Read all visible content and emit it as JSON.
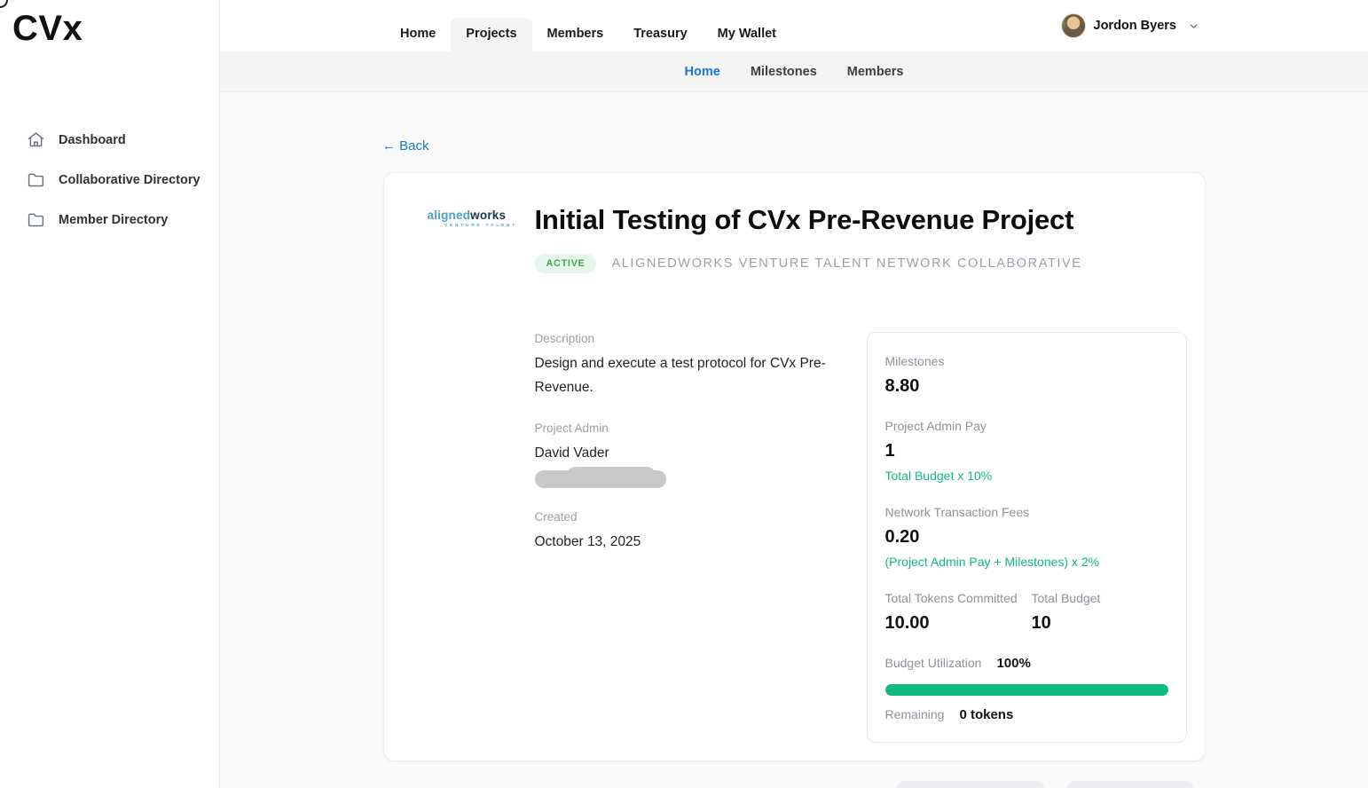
{
  "brand": {
    "logo_text": "CVx"
  },
  "sidebar": {
    "items": [
      {
        "label": "Dashboard",
        "icon": "home-icon"
      },
      {
        "label": "Collaborative Directory",
        "icon": "folder-icon"
      },
      {
        "label": "Member Directory",
        "icon": "folder-icon"
      }
    ]
  },
  "topnav": {
    "items": [
      {
        "label": "Home",
        "active": false
      },
      {
        "label": "Projects",
        "active": true
      },
      {
        "label": "Members",
        "active": false
      },
      {
        "label": "Treasury",
        "active": false
      },
      {
        "label": "My Wallet",
        "active": false
      }
    ],
    "user": {
      "name": "Jordon Byers"
    }
  },
  "subnav": {
    "items": [
      {
        "label": "Home",
        "active": true
      },
      {
        "label": "Milestones",
        "active": false
      },
      {
        "label": "Members",
        "active": false
      }
    ]
  },
  "main": {
    "back_label": "← Back",
    "project": {
      "title": "Initial Testing of CVx Pre-Revenue Project",
      "status": "ACTIVE",
      "collaborative": "ALIGNEDWORKS VENTURE TALENT NETWORK COLLABORATIVE",
      "org_logo": {
        "part1": "aligned",
        "part2": "works",
        "tagline": "VENTURE TALENT"
      },
      "description_label": "Description",
      "description": "Design and execute a test protocol for CVx Pre-Revenue.",
      "admin_label": "Project Admin",
      "admin_name": "David Vader",
      "created_label": "Created",
      "created_value": "October 13, 2025"
    },
    "stats": {
      "milestones_label": "Milestones",
      "milestones_value": "8.80",
      "admin_pay_label": "Project Admin Pay",
      "admin_pay_value": "1",
      "admin_pay_formula": "Total Budget x 10%",
      "fees_label": "Network Transaction Fees",
      "fees_value": "0.20",
      "fees_formula": "(Project Admin Pay + Milestones) x 2%",
      "committed_label": "Total Tokens Committed",
      "committed_value": "10.00",
      "budget_label": "Total Budget",
      "budget_value": "10",
      "utilization_label": "Budget Utilization",
      "utilization_value": "100%",
      "utilization_pct": 100,
      "remaining_label": "Remaining",
      "remaining_value": "0 tokens"
    }
  },
  "colors": {
    "accent_blue": "#1976d2",
    "status_green": "#41a754",
    "formula_teal": "#10b981",
    "progress_green": "#10b981",
    "subnav_bg": "#f4f4f5"
  }
}
